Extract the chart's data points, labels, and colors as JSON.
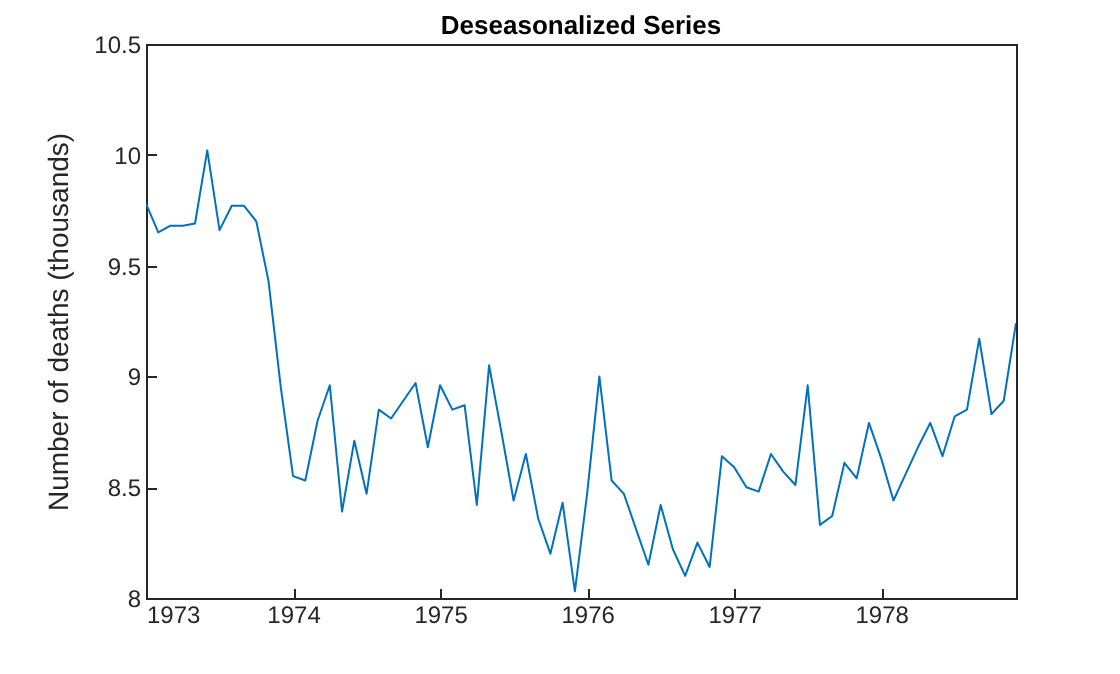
{
  "chart_data": {
    "type": "line",
    "title": "Deseasonalized Series",
    "ylabel": "Number of deaths (thousands)",
    "x": [
      1973,
      1973.0833,
      1973.1667,
      1973.25,
      1973.3333,
      1973.4167,
      1973.5,
      1973.5833,
      1973.6667,
      1973.75,
      1973.8333,
      1973.9167,
      1974,
      1974.0833,
      1974.1667,
      1974.25,
      1974.3333,
      1974.4167,
      1974.5,
      1974.5833,
      1974.6667,
      1974.75,
      1974.8333,
      1974.9167,
      1975,
      1975.0833,
      1975.1667,
      1975.25,
      1975.3333,
      1975.4167,
      1975.5,
      1975.5833,
      1975.6667,
      1975.75,
      1975.8333,
      1975.9167,
      1976,
      1976.0833,
      1976.1667,
      1976.25,
      1976.3333,
      1976.4167,
      1976.5,
      1976.5833,
      1976.6667,
      1976.75,
      1976.8333,
      1976.9167,
      1977,
      1977.0833,
      1977.1667,
      1977.25,
      1977.3333,
      1977.4167,
      1977.5,
      1977.5833,
      1977.6667,
      1977.75,
      1977.8333,
      1977.9167,
      1978,
      1978.0833,
      1978.1667,
      1978.25,
      1978.3333,
      1978.4167,
      1978.5,
      1978.5833,
      1978.6667,
      1978.75,
      1978.8333,
      1978.9167
    ],
    "series": [
      {
        "color": "#0072bd",
        "values": [
          9.78,
          9.65,
          9.68,
          9.68,
          9.69,
          10.02,
          9.66,
          9.77,
          9.77,
          9.7,
          9.43,
          8.95,
          8.55,
          8.53,
          8.8,
          8.96,
          8.39,
          8.71,
          8.47,
          8.85,
          8.81,
          8.89,
          8.97,
          8.68,
          8.96,
          8.85,
          8.87,
          8.42,
          9.05,
          8.75,
          8.44,
          8.65,
          8.36,
          8.2,
          8.43,
          8.03,
          8.47,
          9.0,
          8.53,
          8.47,
          8.31,
          8.15,
          8.42,
          8.22,
          8.1,
          8.25,
          8.14,
          8.64,
          8.59,
          8.5,
          8.48,
          8.65,
          8.57,
          8.51,
          8.96,
          8.33,
          8.37,
          8.61,
          8.54,
          8.79,
          8.63,
          8.44,
          8.56,
          8.68,
          8.79,
          8.64,
          8.82,
          8.85,
          9.17,
          8.83,
          8.89,
          9.24
        ]
      }
    ],
    "xlim": [
      1973,
      1978.9167
    ],
    "xticks": [
      1973,
      1974,
      1975,
      1976,
      1977,
      1978
    ],
    "ylim": [
      8,
      10.5
    ],
    "yticks": [
      8,
      8.5,
      9,
      9.5,
      10,
      10.5
    ],
    "grid": false,
    "legend": false,
    "marker": "none",
    "line_style": "solid"
  }
}
